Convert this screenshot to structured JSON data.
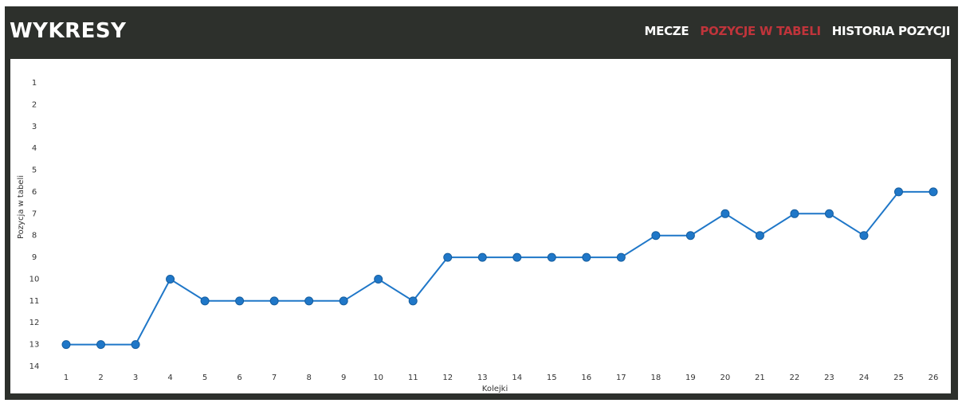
{
  "header": {
    "title": "WYKRESY",
    "nav": [
      {
        "label": "MECZE",
        "active": false
      },
      {
        "label": "POZYCJE W TABELI",
        "active": true
      },
      {
        "label": "HISTORIA POZYCJI",
        "active": false
      }
    ]
  },
  "colors": {
    "frame": "#2d302c",
    "active_nav": "#c0343b",
    "line": "#1f77c8",
    "marker": "#1f77c8"
  },
  "chart_data": {
    "type": "line",
    "title": "",
    "xlabel": "Kolejki",
    "ylabel": "Pozycja w tabeli",
    "x": [
      1,
      2,
      3,
      4,
      5,
      6,
      7,
      8,
      9,
      10,
      11,
      12,
      13,
      14,
      15,
      16,
      17,
      18,
      19,
      20,
      21,
      22,
      23,
      24,
      25,
      26
    ],
    "y_ticks": [
      1,
      2,
      3,
      4,
      5,
      6,
      7,
      8,
      9,
      10,
      11,
      12,
      13,
      14
    ],
    "ylim": [
      1,
      14
    ],
    "y_inverted": true,
    "grid": false,
    "series": [
      {
        "values": [
          13,
          13,
          13,
          10,
          11,
          11,
          11,
          11,
          11,
          10,
          11,
          9,
          9,
          9,
          9,
          9,
          9,
          8,
          8,
          7,
          8,
          7,
          7,
          8,
          6,
          6
        ]
      }
    ]
  }
}
